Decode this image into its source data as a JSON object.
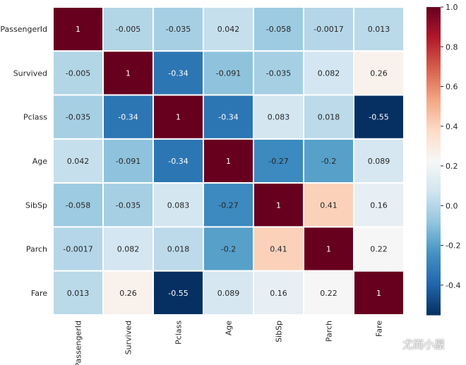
{
  "chart_data": {
    "type": "heatmap",
    "labels": [
      "PassengerId",
      "Survived",
      "Pclass",
      "Age",
      "SibSp",
      "Parch",
      "Fare"
    ],
    "matrix": [
      [
        "1",
        "-0.005",
        "-0.035",
        "0.042",
        "-0.058",
        "-0.0017",
        "0.013"
      ],
      [
        "-0.005",
        "1",
        "-0.34",
        "-0.091",
        "-0.035",
        "0.082",
        "0.26"
      ],
      [
        "-0.035",
        "-0.34",
        "1",
        "-0.34",
        "0.083",
        "0.018",
        "-0.55"
      ],
      [
        "0.042",
        "-0.091",
        "-0.34",
        "1",
        "-0.27",
        "-0.2",
        "0.089"
      ],
      [
        "-0.058",
        "-0.035",
        "0.083",
        "-0.27",
        "1",
        "0.41",
        "0.16"
      ],
      [
        "-0.0017",
        "0.082",
        "0.018",
        "-0.2",
        "0.41",
        "1",
        "0.22"
      ],
      [
        "0.013",
        "0.26",
        "-0.55",
        "0.089",
        "0.16",
        "0.22",
        "1"
      ]
    ],
    "vmin": -0.55,
    "vmax": 1.0,
    "colormap": "RdBu_r",
    "colorbar_ticks": [
      "1.0",
      "0.8",
      "0.6",
      "0.4",
      "0.2",
      "0.0",
      "-0.2",
      "-0.4"
    ],
    "colorbar_tick_values": [
      1.0,
      0.8,
      0.6,
      0.4,
      0.2,
      0.0,
      -0.2,
      -0.4
    ],
    "annotated": true,
    "grid": "white cell separators"
  },
  "watermark": {
    "text": "尤而小屋"
  }
}
